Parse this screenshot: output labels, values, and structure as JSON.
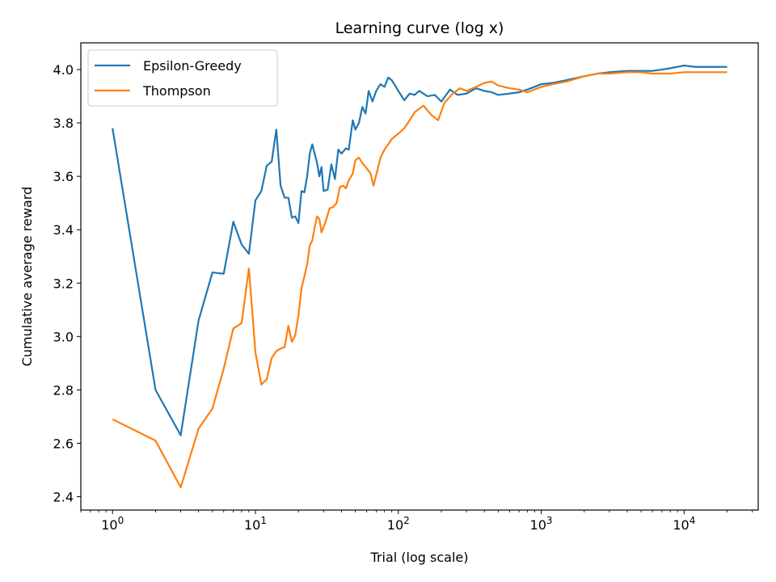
{
  "chart_data": {
    "type": "line",
    "title": "Learning curve (log x)",
    "xlabel": "Trial (log scale)",
    "ylabel": "Cumulative average reward",
    "x_scale": "log",
    "xlim": [
      0.6,
      33000
    ],
    "ylim": [
      2.35,
      4.1
    ],
    "x_ticks": [
      {
        "value": 1,
        "base": "10",
        "exp": "0"
      },
      {
        "value": 10,
        "base": "10",
        "exp": "1"
      },
      {
        "value": 100,
        "base": "10",
        "exp": "2"
      },
      {
        "value": 1000,
        "base": "10",
        "exp": "3"
      },
      {
        "value": 10000,
        "base": "10",
        "exp": "4"
      }
    ],
    "y_ticks": [
      "2.4",
      "2.6",
      "2.8",
      "3.0",
      "3.2",
      "3.4",
      "3.6",
      "3.8",
      "4.0"
    ],
    "legend_position": "upper-left",
    "grid": false,
    "series": [
      {
        "name": "Epsilon-Greedy",
        "color": "#1f77b4",
        "points": [
          [
            1,
            3.78
          ],
          [
            2,
            2.8
          ],
          [
            3,
            2.63
          ],
          [
            4,
            3.06
          ],
          [
            5,
            3.24
          ],
          [
            6,
            3.235
          ],
          [
            7,
            3.43
          ],
          [
            8,
            3.345
          ],
          [
            9,
            3.31
          ],
          [
            10,
            3.51
          ],
          [
            11,
            3.545
          ],
          [
            12,
            3.64
          ],
          [
            13,
            3.655
          ],
          [
            14,
            3.775
          ],
          [
            15,
            3.565
          ],
          [
            16,
            3.52
          ],
          [
            17,
            3.52
          ],
          [
            18,
            3.445
          ],
          [
            19,
            3.45
          ],
          [
            20,
            3.425
          ],
          [
            21,
            3.545
          ],
          [
            22,
            3.54
          ],
          [
            23,
            3.6
          ],
          [
            24,
            3.685
          ],
          [
            25,
            3.72
          ],
          [
            27,
            3.65
          ],
          [
            28,
            3.6
          ],
          [
            29,
            3.635
          ],
          [
            30,
            3.545
          ],
          [
            32,
            3.55
          ],
          [
            34,
            3.645
          ],
          [
            36,
            3.59
          ],
          [
            38,
            3.7
          ],
          [
            40,
            3.685
          ],
          [
            43,
            3.705
          ],
          [
            45,
            3.7
          ],
          [
            48,
            3.81
          ],
          [
            50,
            3.775
          ],
          [
            53,
            3.8
          ],
          [
            56,
            3.86
          ],
          [
            59,
            3.835
          ],
          [
            62,
            3.92
          ],
          [
            66,
            3.88
          ],
          [
            70,
            3.92
          ],
          [
            75,
            3.945
          ],
          [
            80,
            3.935
          ],
          [
            85,
            3.97
          ],
          [
            90,
            3.96
          ],
          [
            100,
            3.92
          ],
          [
            110,
            3.885
          ],
          [
            120,
            3.91
          ],
          [
            130,
            3.905
          ],
          [
            140,
            3.92
          ],
          [
            160,
            3.9
          ],
          [
            180,
            3.905
          ],
          [
            200,
            3.88
          ],
          [
            230,
            3.925
          ],
          [
            260,
            3.905
          ],
          [
            300,
            3.91
          ],
          [
            350,
            3.93
          ],
          [
            400,
            3.92
          ],
          [
            450,
            3.915
          ],
          [
            500,
            3.905
          ],
          [
            600,
            3.91
          ],
          [
            700,
            3.915
          ],
          [
            800,
            3.925
          ],
          [
            1000,
            3.945
          ],
          [
            1200,
            3.95
          ],
          [
            1500,
            3.96
          ],
          [
            2000,
            3.975
          ],
          [
            2500,
            3.985
          ],
          [
            3000,
            3.99
          ],
          [
            4000,
            3.995
          ],
          [
            5000,
            3.995
          ],
          [
            6000,
            3.995
          ],
          [
            7000,
            4.0
          ],
          [
            8000,
            4.005
          ],
          [
            10000,
            4.015
          ],
          [
            12000,
            4.01
          ],
          [
            15000,
            4.01
          ],
          [
            20000,
            4.01
          ]
        ]
      },
      {
        "name": "Thompson",
        "color": "#ff7f0e",
        "points": [
          [
            1,
            2.69
          ],
          [
            2,
            2.61
          ],
          [
            3,
            2.435
          ],
          [
            4,
            2.655
          ],
          [
            5,
            2.73
          ],
          [
            6,
            2.88
          ],
          [
            7,
            3.03
          ],
          [
            8,
            3.05
          ],
          [
            9,
            3.255
          ],
          [
            10,
            2.94
          ],
          [
            11,
            2.82
          ],
          [
            12,
            2.84
          ],
          [
            13,
            2.92
          ],
          [
            14,
            2.945
          ],
          [
            15,
            2.955
          ],
          [
            16,
            2.96
          ],
          [
            17,
            3.04
          ],
          [
            18,
            2.98
          ],
          [
            19,
            3.005
          ],
          [
            20,
            3.08
          ],
          [
            21,
            3.18
          ],
          [
            22,
            3.225
          ],
          [
            23,
            3.27
          ],
          [
            24,
            3.34
          ],
          [
            25,
            3.36
          ],
          [
            26,
            3.41
          ],
          [
            27,
            3.45
          ],
          [
            28,
            3.44
          ],
          [
            29,
            3.39
          ],
          [
            31,
            3.43
          ],
          [
            33,
            3.48
          ],
          [
            35,
            3.485
          ],
          [
            37,
            3.5
          ],
          [
            39,
            3.56
          ],
          [
            41,
            3.565
          ],
          [
            43,
            3.555
          ],
          [
            45,
            3.585
          ],
          [
            48,
            3.61
          ],
          [
            50,
            3.66
          ],
          [
            53,
            3.67
          ],
          [
            56,
            3.65
          ],
          [
            60,
            3.63
          ],
          [
            64,
            3.61
          ],
          [
            67,
            3.565
          ],
          [
            70,
            3.605
          ],
          [
            75,
            3.67
          ],
          [
            80,
            3.7
          ],
          [
            85,
            3.72
          ],
          [
            90,
            3.74
          ],
          [
            100,
            3.76
          ],
          [
            110,
            3.78
          ],
          [
            120,
            3.81
          ],
          [
            130,
            3.84
          ],
          [
            150,
            3.865
          ],
          [
            170,
            3.83
          ],
          [
            190,
            3.81
          ],
          [
            210,
            3.875
          ],
          [
            240,
            3.91
          ],
          [
            270,
            3.93
          ],
          [
            300,
            3.92
          ],
          [
            350,
            3.935
          ],
          [
            400,
            3.95
          ],
          [
            450,
            3.955
          ],
          [
            500,
            3.94
          ],
          [
            600,
            3.93
          ],
          [
            700,
            3.925
          ],
          [
            800,
            3.915
          ],
          [
            1000,
            3.935
          ],
          [
            1200,
            3.945
          ],
          [
            1500,
            3.955
          ],
          [
            2000,
            3.975
          ],
          [
            2500,
            3.985
          ],
          [
            3000,
            3.985
          ],
          [
            4000,
            3.99
          ],
          [
            5000,
            3.99
          ],
          [
            6000,
            3.985
          ],
          [
            8000,
            3.985
          ],
          [
            10000,
            3.99
          ],
          [
            15000,
            3.99
          ],
          [
            20000,
            3.99
          ]
        ]
      }
    ]
  }
}
